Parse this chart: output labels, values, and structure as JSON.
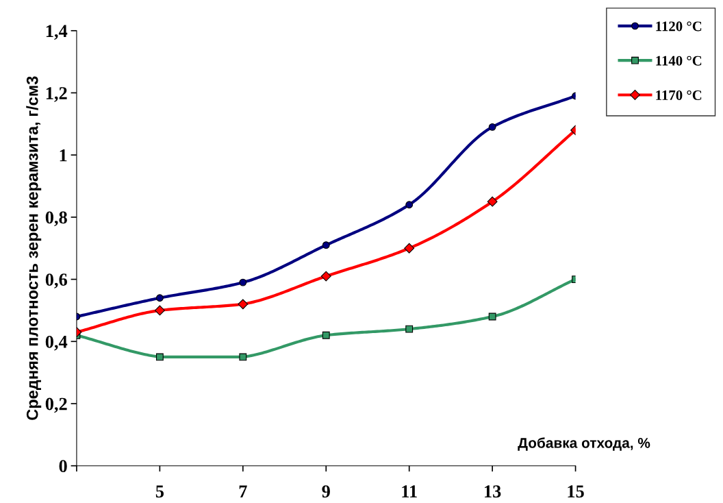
{
  "chart_data": {
    "type": "line",
    "xlabel": "Добавка отхода, %",
    "ylabel": "Средняя плотность зерен керамзита, г/см3",
    "x": [
      3,
      5,
      7,
      9,
      11,
      13,
      15
    ],
    "xlim": [
      3,
      15
    ],
    "xticks": [
      {
        "value": 3,
        "label": null
      },
      5,
      7,
      9,
      11,
      13,
      15
    ],
    "ylim": [
      0,
      1.4
    ],
    "yticks": [
      {
        "value": 0,
        "label": "0"
      },
      {
        "value": 0.2,
        "label": "0,2"
      },
      {
        "value": 0.4,
        "label": "0,4"
      },
      {
        "value": 0.6,
        "label": "0,6"
      },
      {
        "value": 0.8,
        "label": "0,8"
      },
      {
        "value": 1,
        "label": "1"
      },
      {
        "value": 1.2,
        "label": "1,2"
      },
      {
        "value": 1.4,
        "label": "1,4"
      }
    ],
    "grid": false,
    "legend": "top right",
    "line_style": "solid",
    "series": [
      {
        "name": "1120 °C",
        "color": "#000080",
        "marker": "circle",
        "values": [
          0.48,
          0.54,
          0.59,
          0.71,
          0.84,
          1.09,
          1.19
        ]
      },
      {
        "name": "1140 °C",
        "color": "#339966",
        "marker": "square",
        "values": [
          0.42,
          0.35,
          0.35,
          0.42,
          0.44,
          0.48,
          0.6
        ]
      },
      {
        "name": "1170 °C",
        "color": "#ff0000",
        "marker": "diamond",
        "values": [
          0.43,
          0.5,
          0.52,
          0.61,
          0.7,
          0.85,
          1.08
        ]
      }
    ]
  }
}
